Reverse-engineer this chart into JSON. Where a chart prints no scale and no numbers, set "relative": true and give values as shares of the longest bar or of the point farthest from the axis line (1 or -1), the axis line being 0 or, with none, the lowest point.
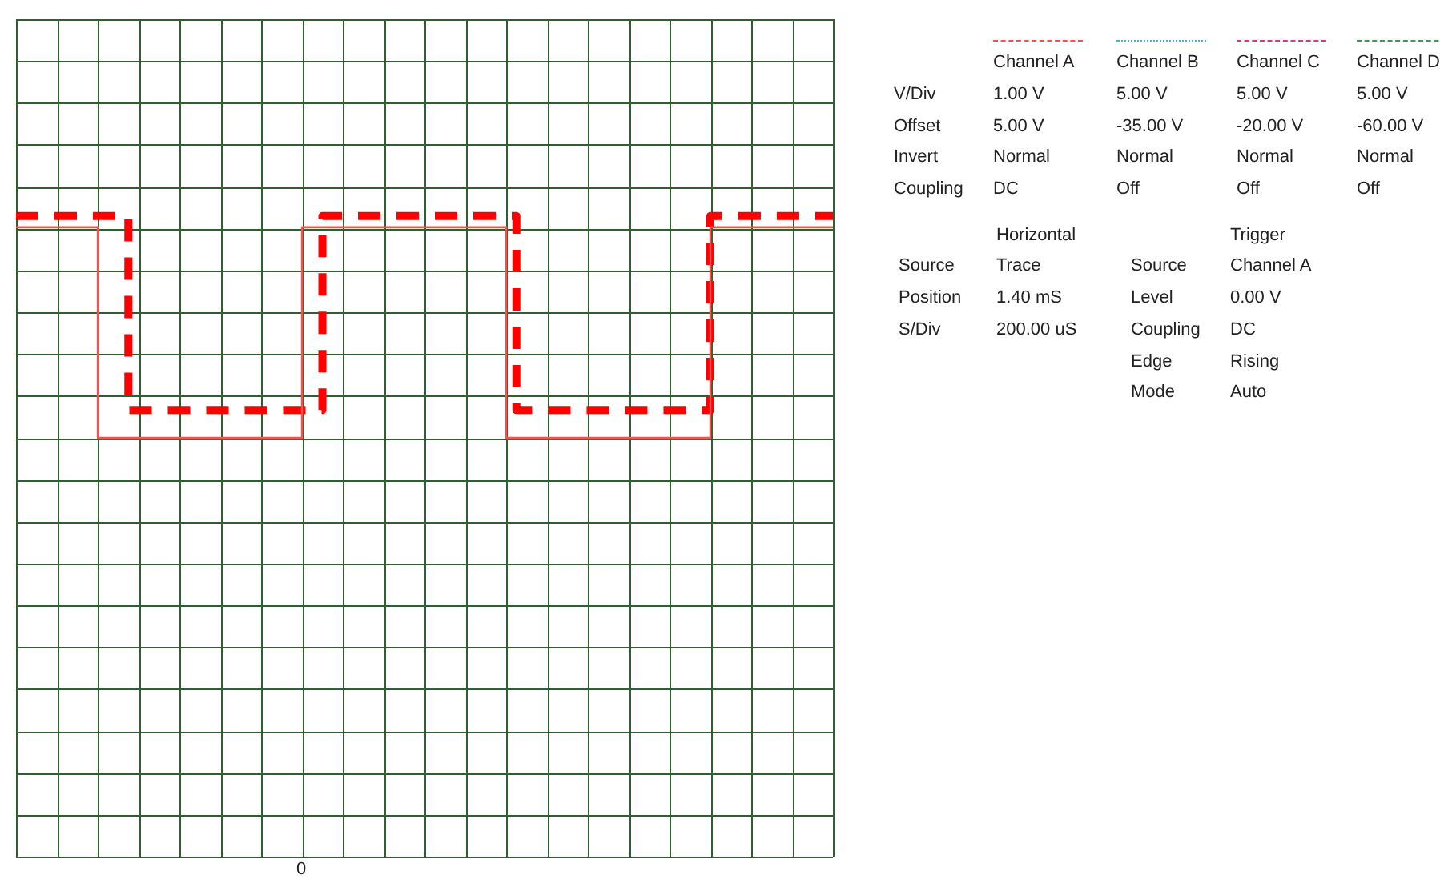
{
  "chart_data": {
    "type": "step",
    "relative": true,
    "grid": true,
    "tick_labels": false,
    "categories": [
      null,
      null,
      null,
      null,
      null,
      null,
      null,
      null,
      null,
      null,
      null,
      null,
      null,
      null,
      null,
      null,
      null,
      null,
      null,
      null,
      null,
      null,
      null,
      null,
      null,
      null,
      null,
      null,
      null,
      null,
      null,
      null,
      null,
      null,
      null,
      null,
      null,
      null,
      null,
      null,
      null,
      null,
      null,
      null,
      null,
      null,
      null,
      null,
      null,
      null,
      null,
      null,
      null,
      null,
      null,
      null,
      null,
      null,
      null,
      null,
      null,
      null,
      null,
      null,
      null,
      null,
      null,
      null,
      null,
      null,
      null,
      null,
      null,
      null,
      null,
      null,
      null,
      null,
      null,
      null,
      null
    ],
    "series": [
      {
        "color": "#ff4d4d",
        "line_style": "solid",
        "values": [
          0.95,
          0.95,
          0.95,
          0.95,
          0.95,
          0.95,
          0.95,
          0.95,
          0,
          0,
          0,
          0,
          0,
          0,
          0,
          0,
          0,
          0,
          0,
          0,
          0,
          0,
          0,
          0,
          0,
          0,
          0,
          0,
          0.95,
          0.95,
          0.95,
          0.95,
          0.95,
          0.95,
          0.95,
          0.95,
          0.95,
          0.95,
          0.95,
          0.95,
          0.95,
          0.95,
          0.95,
          0.95,
          0.95,
          0.95,
          0.95,
          0.95,
          0,
          0,
          0,
          0,
          0,
          0,
          0,
          0,
          0,
          0,
          0,
          0,
          0,
          0,
          0,
          0,
          0,
          0,
          0,
          0,
          0.95,
          0.95,
          0.95,
          0.95,
          0.95,
          0.95,
          0.95,
          0.95,
          0.95,
          0.95,
          0.95,
          0.95,
          0.95
        ]
      },
      {
        "color": "#ff0000",
        "line_style": "dashed",
        "values": [
          1,
          1,
          1,
          1,
          1,
          1,
          1,
          1,
          1,
          1,
          1,
          0.125,
          0.125,
          0.125,
          0.125,
          0.125,
          0.125,
          0.125,
          0.125,
          0.125,
          0.125,
          0.125,
          0.125,
          0.125,
          0.125,
          0.125,
          0.125,
          0.125,
          0.125,
          0.125,
          1,
          1,
          1,
          1,
          1,
          1,
          1,
          1,
          1,
          1,
          1,
          1,
          1,
          1,
          1,
          1,
          1,
          1,
          1,
          0.125,
          0.125,
          0.125,
          0.125,
          0.125,
          0.125,
          0.125,
          0.125,
          0.125,
          0.125,
          0.125,
          0.125,
          0.125,
          0.125,
          0.125,
          0.125,
          0.125,
          0.125,
          0.125,
          1,
          1,
          1,
          1,
          1,
          1,
          1,
          1,
          1,
          1,
          1,
          1,
          1
        ]
      }
    ],
    "annotations": [
      "0",
      "Channel A",
      "Channel B",
      "Channel C",
      "Channel D",
      "V/Div",
      "1.00 V",
      "5.00 V",
      "5.00 V",
      "5.00 V",
      "Offset",
      "5.00 V",
      "-35.00 V",
      "-20.00 V",
      "-60.00 V",
      "Invert",
      "Normal",
      "Normal",
      "Normal",
      "Normal",
      "Coupling",
      "DC",
      "Off",
      "Off",
      "Off",
      "Horizontal",
      "Trigger",
      "Source",
      "Trace",
      "Source",
      "Channel A",
      "Position",
      "1.40 mS",
      "Level",
      "0.00 V",
      "S/Div",
      "200.00 uS",
      "Coupling",
      "DC",
      "Edge",
      "Rising",
      "Mode",
      "Auto"
    ]
  }
}
